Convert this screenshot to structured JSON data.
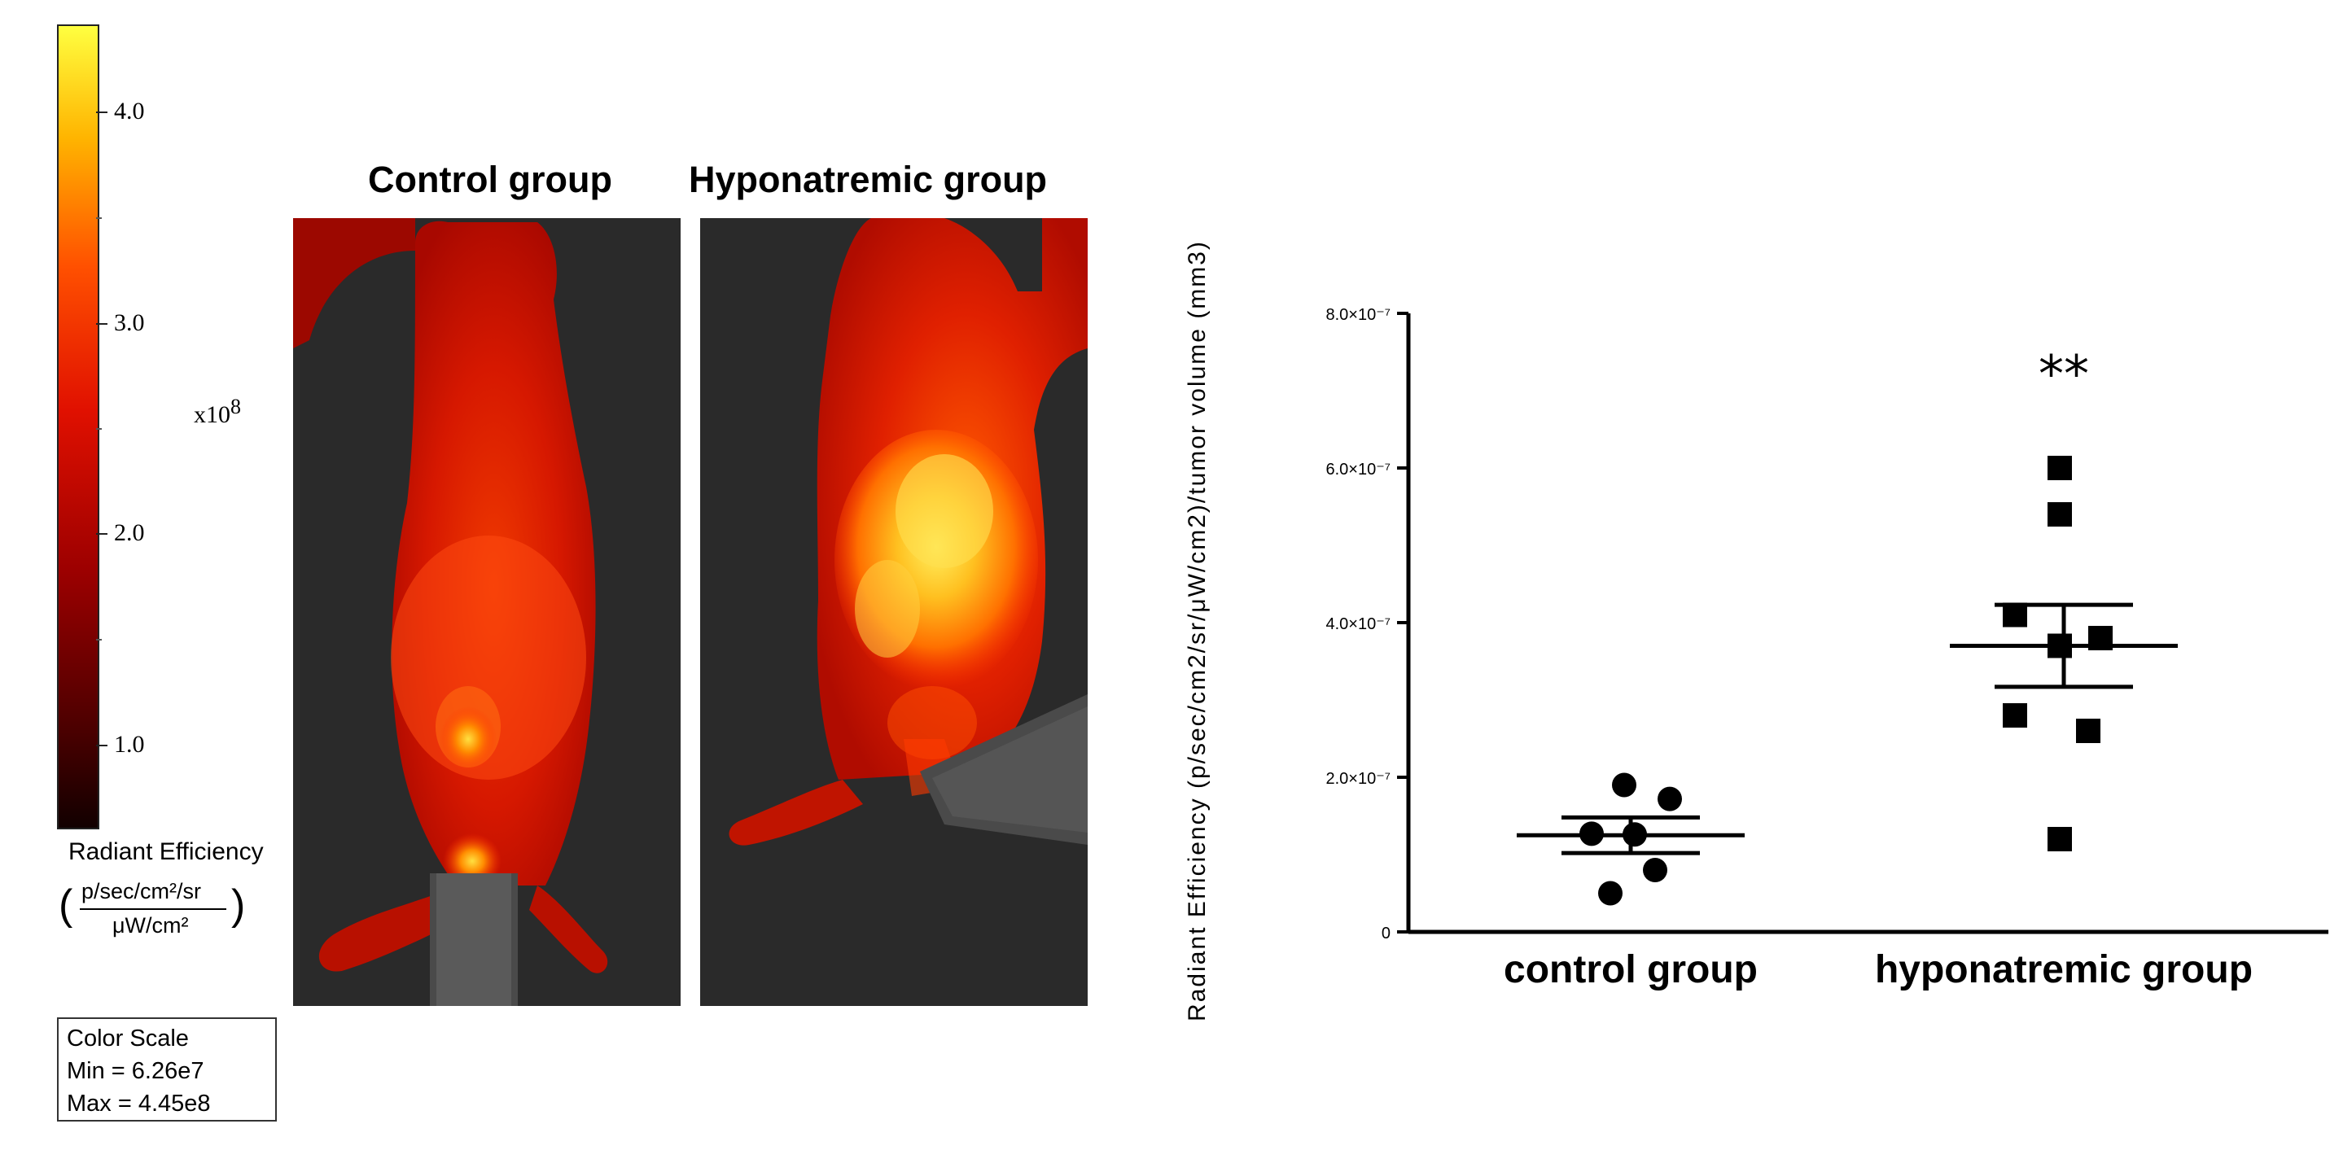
{
  "colorbar": {
    "tick_labels": [
      "4.0",
      "3.0",
      "2.0",
      "1.0"
    ],
    "multiplier_base": "x10",
    "multiplier_exp": "8",
    "title": "Radiant Efficiency",
    "units_numerator": "p/sec/cm²/sr",
    "units_denominator": "μW/cm²",
    "color_low": "#120000",
    "color_high": "#ffff40"
  },
  "color_scale": {
    "heading": "Color Scale",
    "min_text": "Min = 6.26e7",
    "max_text": "Max = 4.45e8"
  },
  "imaging": {
    "control_title": "Control group",
    "hypo_title": "Hyponatremic group"
  },
  "chart_data": {
    "type": "scatter",
    "ylabel": "Radiant Efficiency (p/sec/cm2/sr/μW/cm2)/tumor volume (mm3)",
    "xlabel": "",
    "categories": [
      "control group",
      "hyponatremic group"
    ],
    "ylim": [
      0,
      8e-07
    ],
    "y_ticks": [
      0,
      2e-07,
      4e-07,
      6e-07,
      8e-07
    ],
    "y_tick_labels": [
      "0",
      "2.0×10⁻⁷",
      "4.0×10⁻⁷",
      "6.0×10⁻⁷",
      "8.0×10⁻⁷"
    ],
    "grid": false,
    "series": [
      {
        "category": "control group",
        "marker": "circle",
        "values": [
          1.9e-07,
          1.72e-07,
          1.27e-07,
          1.26e-07,
          8e-08,
          5e-08
        ],
        "mean": 1.25e-07,
        "sem": 2.3e-08
      },
      {
        "category": "hyponatremic group",
        "marker": "square",
        "values": [
          6e-07,
          5.4e-07,
          4.1e-07,
          3.8e-07,
          3.7e-07,
          2.8e-07,
          2.6e-07,
          1.2e-07
        ],
        "mean": 3.7e-07,
        "sem": 5.3e-08
      }
    ],
    "annotations": [
      {
        "category": "hyponatremic group",
        "text": "**",
        "y": 7.2e-07
      }
    ]
  }
}
